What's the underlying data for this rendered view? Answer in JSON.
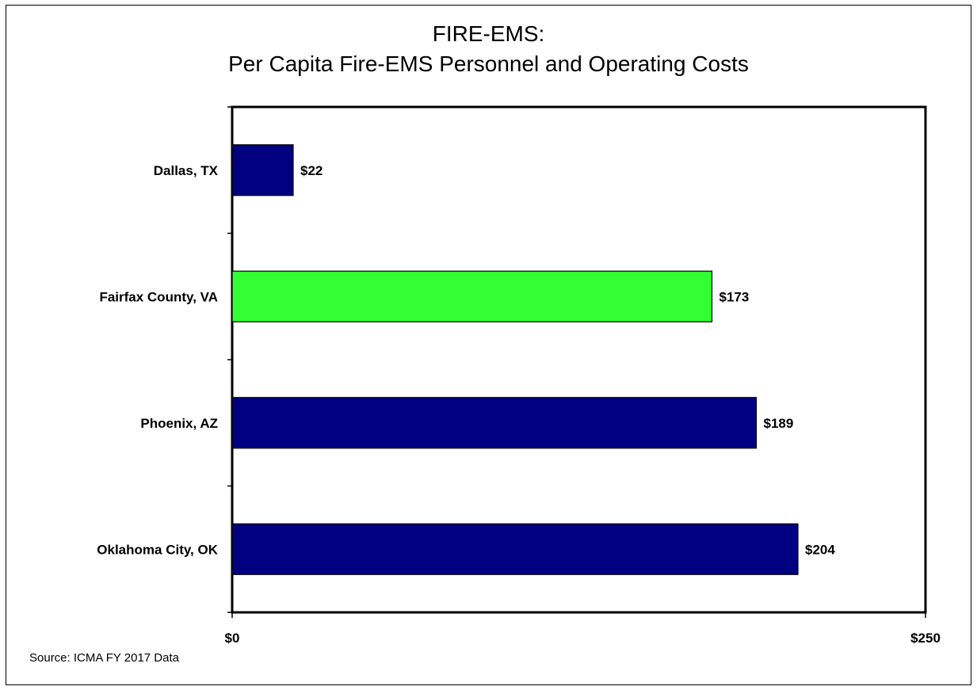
{
  "title_line1": "FIRE-EMS:",
  "title_line2": "Per Capita Fire-EMS Personnel and Operating Costs",
  "source": "Source: ICMA FY 2017  Data",
  "chart_data": {
    "type": "bar",
    "orientation": "horizontal",
    "categories": [
      "Dallas, TX",
      "Fairfax County, VA",
      "Phoenix, AZ",
      "Oklahoma City, OK"
    ],
    "values": [
      22,
      173,
      189,
      204
    ],
    "value_labels": [
      "$22",
      "$173",
      "$189",
      "$204"
    ],
    "bar_colors": [
      "#000080",
      "#33ff33",
      "#000080",
      "#000080"
    ],
    "xlim": [
      0,
      250
    ],
    "x_tick_labels": [
      "$0",
      "$250"
    ],
    "grid": false,
    "legend": "none"
  }
}
